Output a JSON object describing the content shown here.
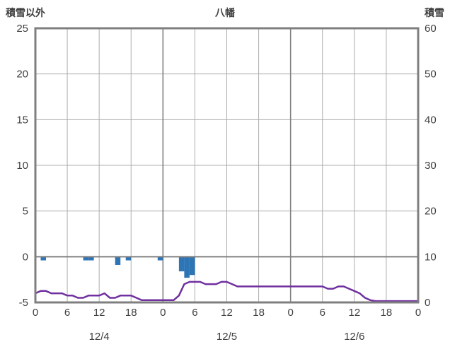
{
  "header": {
    "left_axis_title": "積雪以外",
    "title": "八幡",
    "right_axis_title": "積雪"
  },
  "colors": {
    "bar": "#2E75B6",
    "line": "#7030A0",
    "frame": "#7F7F7F",
    "grid_light": "#ADADAD",
    "grid_dark": "#808080",
    "zero_line": "#808080",
    "text": "#404040"
  },
  "chart_data": {
    "type": "mixed",
    "title": "八幡",
    "left_axis": {
      "label": "積雪以外",
      "min": -5,
      "max": 25,
      "ticks": [
        -5,
        0,
        5,
        10,
        15,
        20,
        25
      ]
    },
    "right_axis": {
      "label": "積雪",
      "min": 0,
      "max": 60,
      "ticks": [
        0,
        10,
        20,
        30,
        40,
        50,
        60
      ]
    },
    "x_axis": {
      "min_hour": 0,
      "max_hour": 72,
      "tick_interval": 6,
      "tick_labels": [
        "0",
        "6",
        "12",
        "18",
        "0",
        "6",
        "12",
        "18",
        "0",
        "6",
        "12",
        "18",
        "0"
      ],
      "day_labels": [
        "12/4",
        "12/5",
        "12/6"
      ],
      "day_boundaries": [
        24,
        48
      ]
    },
    "series": [
      {
        "name": "積雪以外",
        "type": "bar",
        "axis": "left",
        "color": "#2E75B6",
        "points": [
          {
            "hour": 1,
            "value": -0.4
          },
          {
            "hour": 9,
            "value": -0.4
          },
          {
            "hour": 10,
            "value": -0.4
          },
          {
            "hour": 15,
            "value": -0.9
          },
          {
            "hour": 17,
            "value": -0.4
          },
          {
            "hour": 23,
            "value": -0.4
          },
          {
            "hour": 27,
            "value": -1.6
          },
          {
            "hour": 28,
            "value": -2.3
          },
          {
            "hour": 29,
            "value": -2.0
          }
        ]
      },
      {
        "name": "積雪",
        "type": "line",
        "axis": "right",
        "color": "#7030A0",
        "values_by_hour": [
          2,
          2.5,
          2.5,
          2,
          2,
          2,
          1.5,
          1.5,
          1,
          1,
          1.5,
          1.5,
          1.5,
          2,
          1,
          1,
          1.5,
          1.5,
          1.5,
          1,
          0.5,
          0.5,
          0.5,
          0.5,
          0.5,
          0.5,
          0.5,
          1.5,
          4,
          4.5,
          4.5,
          4.5,
          4,
          4,
          4,
          4.5,
          4.5,
          4,
          3.5,
          3.5,
          3.5,
          3.5,
          3.5,
          3.5,
          3.5,
          3.5,
          3.5,
          3.5,
          3.5,
          3.5,
          3.5,
          3.5,
          3.5,
          3.5,
          3.5,
          3,
          3,
          3.5,
          3.5,
          3,
          2.5,
          2,
          1,
          0.5,
          0.3,
          0.3,
          0.3,
          0.3,
          0.3,
          0.3,
          0.3,
          0.3,
          0.3
        ]
      }
    ]
  }
}
